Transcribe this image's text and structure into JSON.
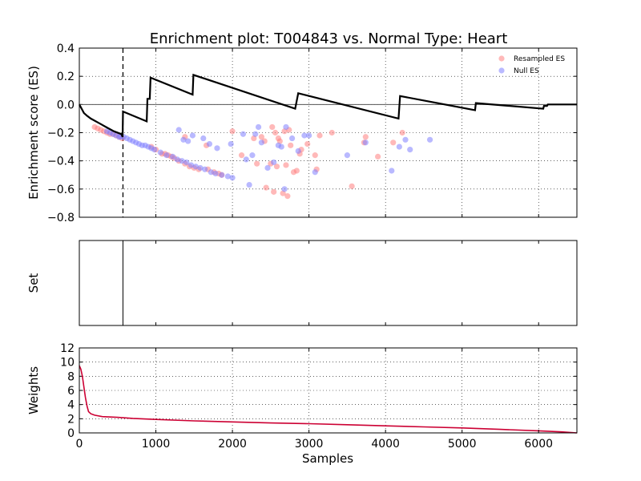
{
  "chart_data": {
    "type": "scatter",
    "title": "Enrichment plot: T004843 vs. Normal Type: Heart",
    "xlabel": "Samples",
    "xlim": [
      0,
      6500
    ],
    "xticks": [
      0,
      1000,
      2000,
      3000,
      4000,
      5000,
      6000
    ],
    "grid": true,
    "legend_position": "top-right",
    "colors": {
      "resampled": "#ff7f7f",
      "null": "#7f7fff",
      "es_line": "#000000",
      "weights_line": "#cc0033"
    },
    "panels": [
      {
        "name": "enrichment",
        "ylabel": "Enrichment score (ES)",
        "ylim": [
          -0.8,
          0.4
        ],
        "yticks": [
          "0.4",
          "0.2",
          "0.0",
          "−0.2",
          "−0.4",
          "−0.6",
          "−0.8"
        ],
        "yticks_values": [
          0.4,
          0.2,
          0.0,
          -0.2,
          -0.4,
          -0.6,
          -0.8
        ],
        "leading_edge_x": 570,
        "es_curve": [
          [
            0,
            0
          ],
          [
            30,
            -0.03
          ],
          [
            60,
            -0.06
          ],
          [
            100,
            -0.08
          ],
          [
            150,
            -0.1
          ],
          [
            250,
            -0.13
          ],
          [
            350,
            -0.16
          ],
          [
            450,
            -0.19
          ],
          [
            550,
            -0.21
          ],
          [
            565,
            -0.23
          ],
          [
            570,
            -0.05
          ],
          [
            880,
            -0.12
          ],
          [
            890,
            0.04
          ],
          [
            920,
            0.04
          ],
          [
            930,
            0.19
          ],
          [
            1480,
            0.07
          ],
          [
            1490,
            0.21
          ],
          [
            2820,
            -0.03
          ],
          [
            2860,
            0.08
          ],
          [
            4170,
            -0.1
          ],
          [
            4190,
            0.06
          ],
          [
            5170,
            -0.04
          ],
          [
            5180,
            0.01
          ],
          [
            6060,
            -0.03
          ],
          [
            6070,
            -0.01
          ],
          [
            6110,
            -0.01
          ],
          [
            6120,
            0.0
          ],
          [
            6500,
            0.0
          ]
        ],
        "series": [
          {
            "name": "Resampled ES",
            "points": [
              [
                200,
                -0.16
              ],
              [
                240,
                -0.17
              ],
              [
                280,
                -0.18
              ],
              [
                320,
                -0.19
              ],
              [
                360,
                -0.2
              ],
              [
                400,
                -0.21
              ],
              [
                440,
                -0.21
              ],
              [
                480,
                -0.22
              ],
              [
                520,
                -0.23
              ],
              [
                560,
                -0.24
              ],
              [
                940,
                -0.3
              ],
              [
                1000,
                -0.32
              ],
              [
                1080,
                -0.35
              ],
              [
                1120,
                -0.35
              ],
              [
                1160,
                -0.36
              ],
              [
                1200,
                -0.37
              ],
              [
                1240,
                -0.38
              ],
              [
                1300,
                -0.4
              ],
              [
                1380,
                -0.42
              ],
              [
                1440,
                -0.44
              ],
              [
                1500,
                -0.45
              ],
              [
                1560,
                -0.46
              ],
              [
                1680,
                -0.46
              ],
              [
                1760,
                -0.48
              ],
              [
                1820,
                -0.49
              ],
              [
                1860,
                -0.5
              ],
              [
                1380,
                -0.23
              ],
              [
                1660,
                -0.29
              ],
              [
                2000,
                -0.19
              ],
              [
                2120,
                -0.36
              ],
              [
                2280,
                -0.24
              ],
              [
                2320,
                -0.42
              ],
              [
                2380,
                -0.23
              ],
              [
                2420,
                -0.26
              ],
              [
                2440,
                -0.59
              ],
              [
                2500,
                -0.42
              ],
              [
                2520,
                -0.16
              ],
              [
                2540,
                -0.62
              ],
              [
                2560,
                -0.2
              ],
              [
                2580,
                -0.44
              ],
              [
                2600,
                -0.24
              ],
              [
                2620,
                -0.26
              ],
              [
                2660,
                -0.63
              ],
              [
                2680,
                -0.19
              ],
              [
                2700,
                -0.43
              ],
              [
                2720,
                -0.65
              ],
              [
                2740,
                -0.18
              ],
              [
                2760,
                -0.29
              ],
              [
                2800,
                -0.48
              ],
              [
                2840,
                -0.47
              ],
              [
                2880,
                -0.35
              ],
              [
                2900,
                -0.32
              ],
              [
                2980,
                -0.28
              ],
              [
                3080,
                -0.36
              ],
              [
                3100,
                -0.46
              ],
              [
                3140,
                -0.22
              ],
              [
                3300,
                -0.2
              ],
              [
                3560,
                -0.58
              ],
              [
                3720,
                -0.27
              ],
              [
                3740,
                -0.23
              ],
              [
                3900,
                -0.37
              ],
              [
                4100,
                -0.27
              ],
              [
                4220,
                -0.2
              ]
            ]
          },
          {
            "name": "Null ES",
            "points": [
              [
                360,
                -0.19
              ],
              [
                400,
                -0.2
              ],
              [
                440,
                -0.21
              ],
              [
                480,
                -0.22
              ],
              [
                520,
                -0.23
              ],
              [
                540,
                -0.23
              ],
              [
                580,
                -0.23
              ],
              [
                620,
                -0.24
              ],
              [
                660,
                -0.25
              ],
              [
                700,
                -0.26
              ],
              [
                740,
                -0.27
              ],
              [
                780,
                -0.28
              ],
              [
                820,
                -0.29
              ],
              [
                860,
                -0.29
              ],
              [
                900,
                -0.3
              ],
              [
                940,
                -0.31
              ],
              [
                980,
                -0.32
              ],
              [
                1060,
                -0.34
              ],
              [
                1140,
                -0.36
              ],
              [
                1220,
                -0.37
              ],
              [
                1280,
                -0.39
              ],
              [
                1340,
                -0.4
              ],
              [
                1400,
                -0.41
              ],
              [
                1460,
                -0.43
              ],
              [
                1520,
                -0.44
              ],
              [
                1580,
                -0.45
              ],
              [
                1640,
                -0.46
              ],
              [
                1720,
                -0.48
              ],
              [
                1780,
                -0.49
              ],
              [
                1860,
                -0.5
              ],
              [
                1940,
                -0.51
              ],
              [
                2000,
                -0.52
              ],
              [
                1300,
                -0.18
              ],
              [
                1360,
                -0.25
              ],
              [
                1420,
                -0.26
              ],
              [
                1480,
                -0.22
              ],
              [
                1620,
                -0.24
              ],
              [
                1700,
                -0.28
              ],
              [
                1800,
                -0.31
              ],
              [
                1980,
                -0.28
              ],
              [
                2140,
                -0.21
              ],
              [
                2180,
                -0.39
              ],
              [
                2220,
                -0.57
              ],
              [
                2260,
                -0.36
              ],
              [
                2300,
                -0.21
              ],
              [
                2340,
                -0.16
              ],
              [
                2380,
                -0.27
              ],
              [
                2460,
                -0.45
              ],
              [
                2540,
                -0.41
              ],
              [
                2600,
                -0.29
              ],
              [
                2640,
                -0.3
              ],
              [
                2680,
                -0.6
              ],
              [
                2700,
                -0.16
              ],
              [
                2780,
                -0.24
              ],
              [
                2860,
                -0.33
              ],
              [
                2940,
                -0.22
              ],
              [
                3000,
                -0.22
              ],
              [
                3080,
                -0.48
              ],
              [
                3500,
                -0.36
              ],
              [
                3740,
                -0.27
              ],
              [
                4080,
                -0.47
              ],
              [
                4180,
                -0.3
              ],
              [
                4260,
                -0.25
              ],
              [
                4320,
                -0.32
              ],
              [
                4580,
                -0.25
              ]
            ]
          }
        ]
      },
      {
        "name": "set",
        "ylabel": "Set",
        "hits": [
          570
        ]
      },
      {
        "name": "weights",
        "ylabel": "Weights",
        "ylim": [
          0,
          12
        ],
        "yticks": [
          "0",
          "2",
          "4",
          "6",
          "8",
          "10",
          "12"
        ],
        "yticks_values": [
          0,
          2,
          4,
          6,
          8,
          10,
          12
        ],
        "line": [
          [
            0,
            9.5
          ],
          [
            20,
            9.0
          ],
          [
            40,
            8.0
          ],
          [
            60,
            6.5
          ],
          [
            80,
            5.0
          ],
          [
            100,
            3.8
          ],
          [
            120,
            3.0
          ],
          [
            150,
            2.7
          ],
          [
            200,
            2.5
          ],
          [
            300,
            2.3
          ],
          [
            500,
            2.2
          ],
          [
            700,
            2.05
          ],
          [
            1000,
            1.9
          ],
          [
            1500,
            1.7
          ],
          [
            2000,
            1.55
          ],
          [
            2500,
            1.4
          ],
          [
            3000,
            1.3
          ],
          [
            3500,
            1.15
          ],
          [
            4000,
            1.0
          ],
          [
            4500,
            0.85
          ],
          [
            5000,
            0.7
          ],
          [
            5500,
            0.5
          ],
          [
            6000,
            0.3
          ],
          [
            6300,
            0.15
          ],
          [
            6500,
            0.0
          ]
        ]
      }
    ]
  }
}
